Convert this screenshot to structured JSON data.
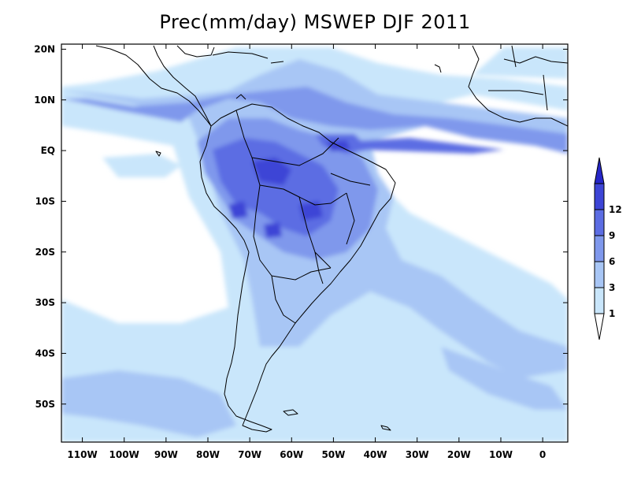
{
  "title": "Prec(mm/day) MSWEP DJF 2011",
  "map": {
    "lat_labels": [
      "20N",
      "10N",
      "EQ",
      "10S",
      "20S",
      "30S",
      "40S",
      "50S"
    ],
    "lon_labels": [
      "110W",
      "100W",
      "90W",
      "80W",
      "70W",
      "60W",
      "50W",
      "40W",
      "30W",
      "20W",
      "10W",
      "0"
    ],
    "lat_values": [
      20,
      10,
      0,
      -10,
      -20,
      -30,
      -40,
      -50
    ],
    "lon_values": [
      -110,
      -100,
      -90,
      -80,
      -70,
      -60,
      -50,
      -40,
      -30,
      -20,
      -10,
      0
    ],
    "extent": {
      "lon": [
        -115,
        6
      ],
      "lat": [
        -57.5,
        21
      ]
    }
  },
  "colorbar": {
    "labels": [
      "1",
      "3",
      "6",
      "9",
      "12"
    ],
    "colors": [
      "#c9e6fb",
      "#a8c6f5",
      "#7f98ec",
      "#5c6de3",
      "#3d45d6",
      "#2626c8"
    ],
    "background": "#ffffff"
  }
}
